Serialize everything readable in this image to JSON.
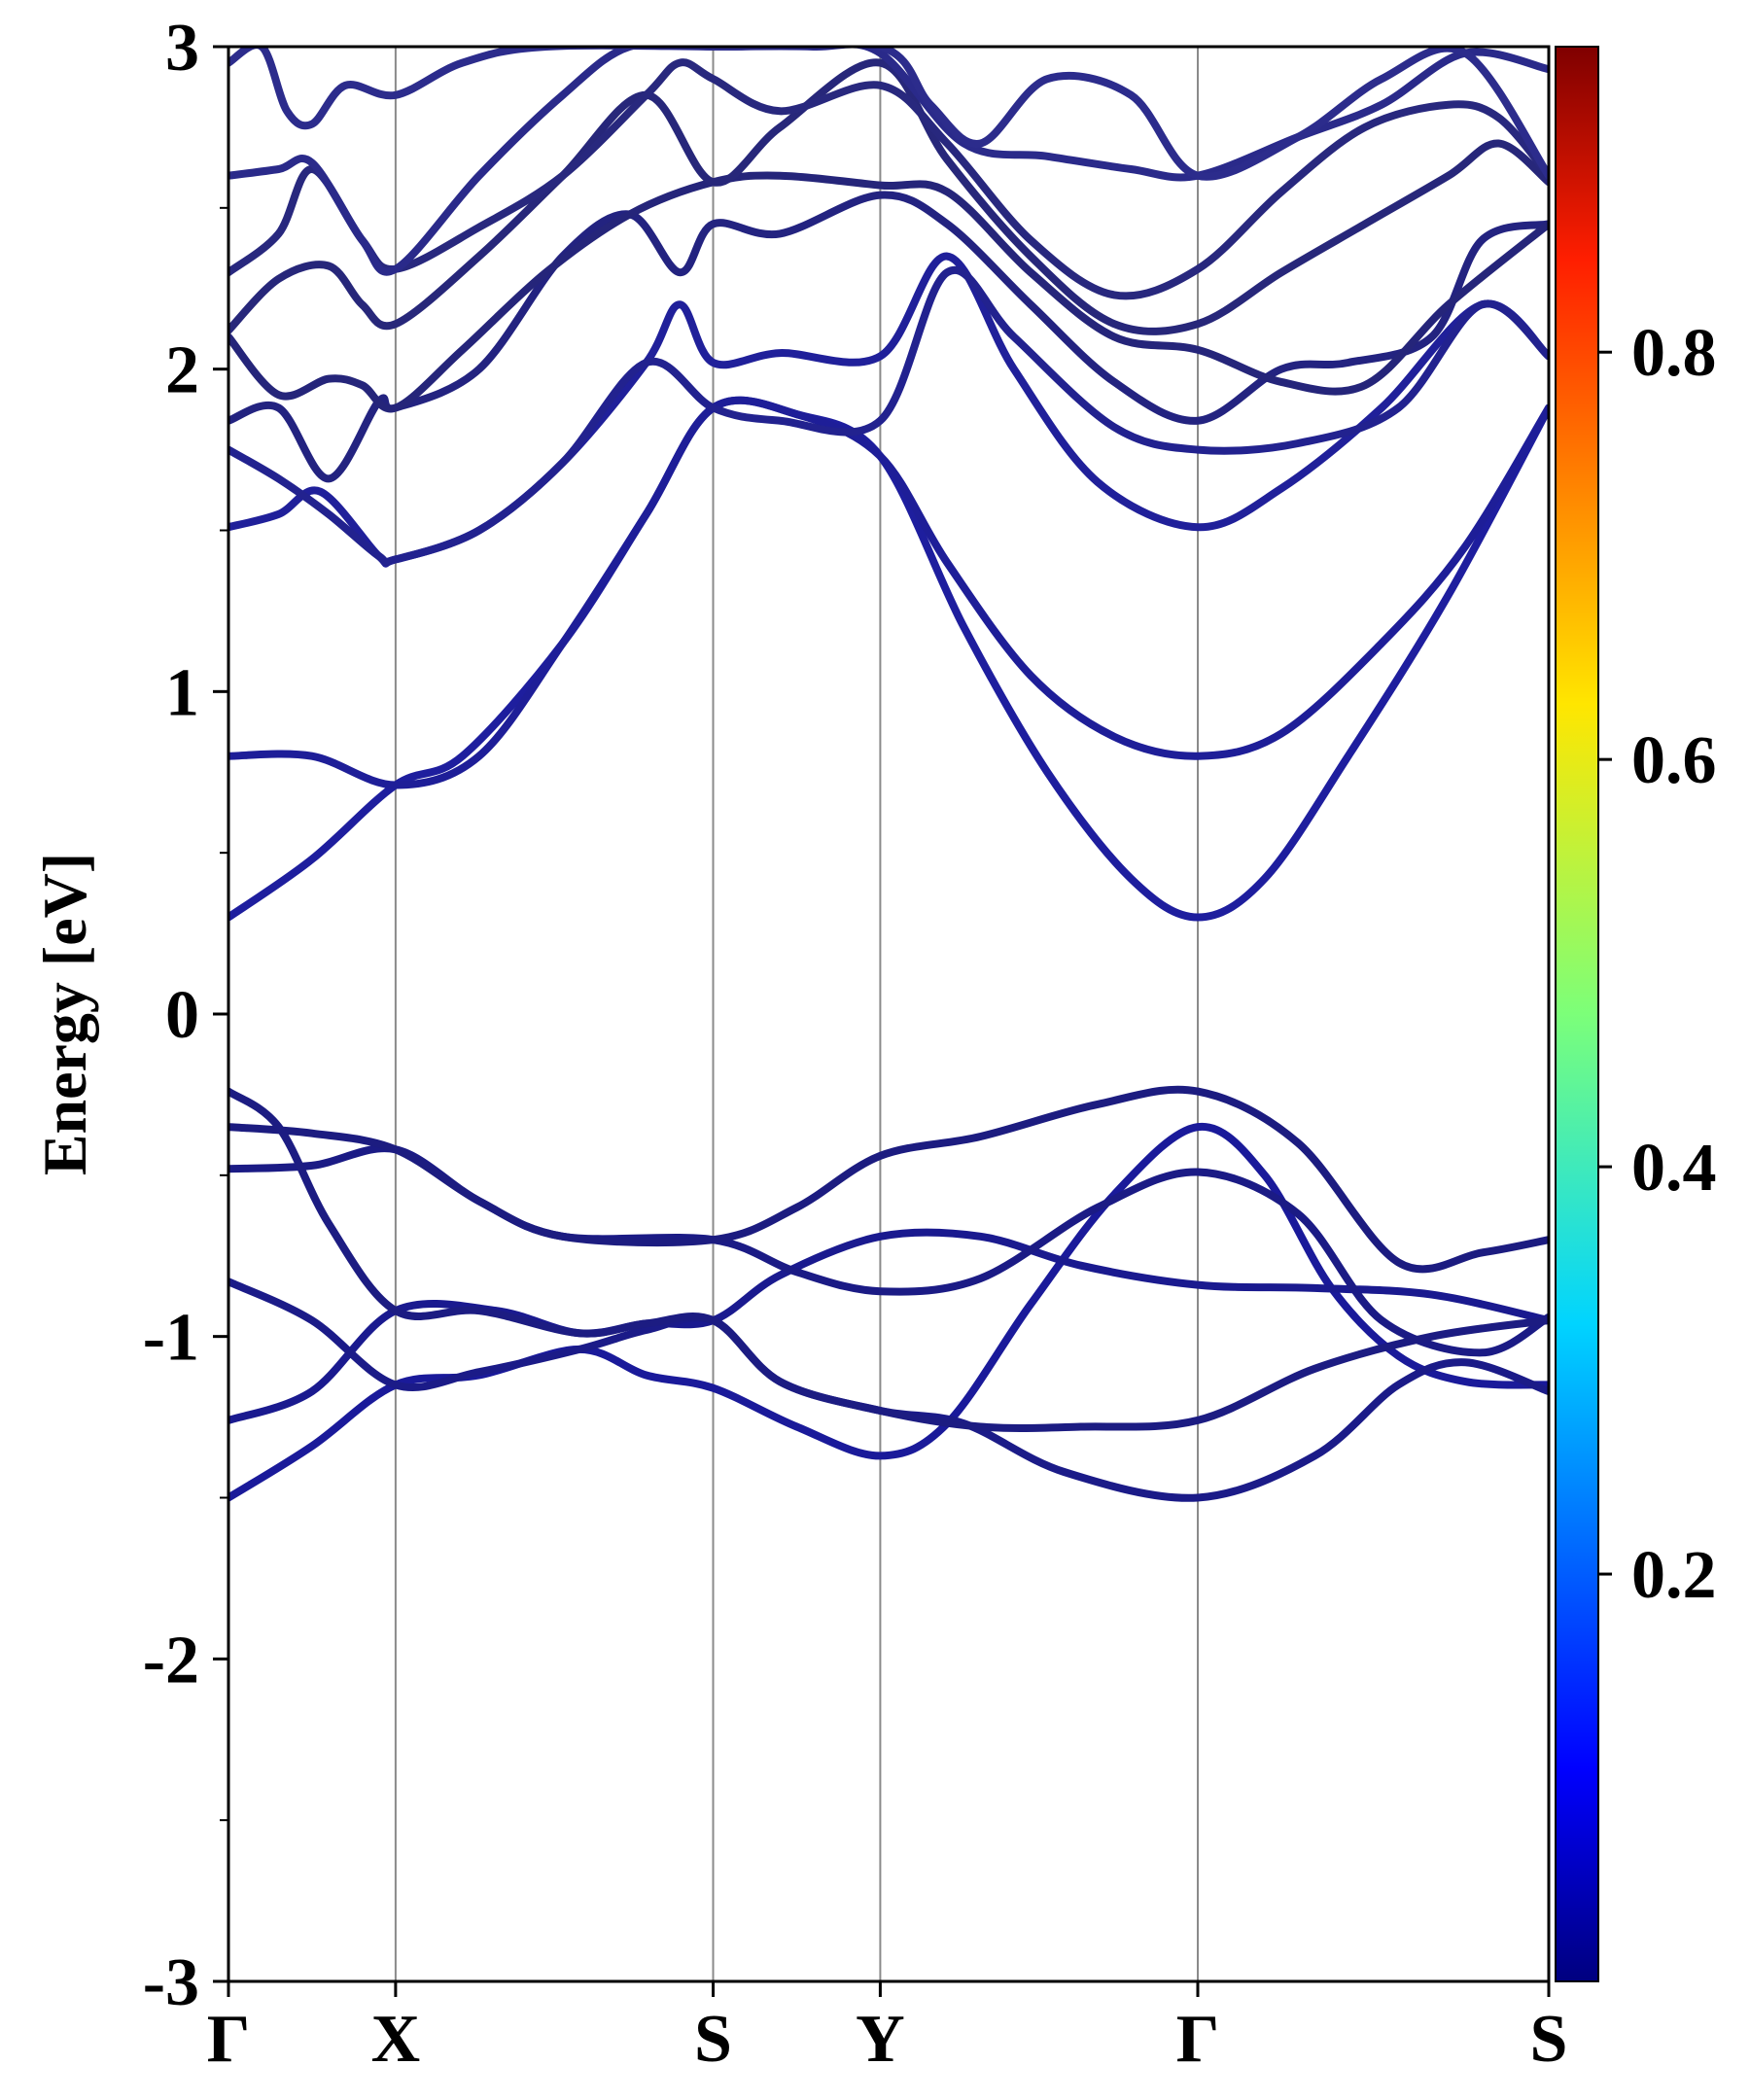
{
  "chart_data": {
    "type": "line",
    "title": "",
    "ylabel": "Energy [eV]",
    "xlabel": "",
    "ylim": [
      -3,
      3
    ],
    "xlim": [
      0,
      7.9
    ],
    "grid": false,
    "yticks": [
      {
        "value": -3,
        "label": "-3"
      },
      {
        "value": -2,
        "label": "-2"
      },
      {
        "value": -1,
        "label": "-1"
      },
      {
        "value": 0,
        "label": "0"
      },
      {
        "value": 1,
        "label": "1"
      },
      {
        "value": 2,
        "label": "2"
      },
      {
        "value": 3,
        "label": "3"
      }
    ],
    "high_symmetry_points": [
      {
        "label": "Γ",
        "x": 0.0
      },
      {
        "label": "X",
        "x": 1.0
      },
      {
        "label": "S",
        "x": 2.9
      },
      {
        "label": "Y",
        "x": 3.9
      },
      {
        "label": "Γ",
        "x": 5.8
      },
      {
        "label": "S",
        "x": 7.9
      }
    ],
    "colorbar": {
      "colormap": "jet",
      "range": [
        0,
        0.95
      ],
      "ticks": [
        {
          "value": 0.2,
          "label": "0.2"
        },
        {
          "value": 0.4,
          "label": "0.4"
        },
        {
          "value": 0.6,
          "label": "0.6"
        },
        {
          "value": 0.8,
          "label": "0.8"
        }
      ]
    },
    "series": [
      {
        "color": "#1a1a9a",
        "points": [
          [
            0.0,
            -1.5
          ],
          [
            0.5,
            -1.34
          ],
          [
            1.0,
            -1.15
          ],
          [
            1.5,
            -1.12
          ],
          [
            2.1,
            -1.04
          ],
          [
            2.5,
            -1.12
          ],
          [
            2.9,
            -1.16
          ],
          [
            3.4,
            -1.28
          ],
          [
            3.9,
            -1.37
          ],
          [
            4.3,
            -1.27
          ],
          [
            4.8,
            -0.9
          ],
          [
            5.3,
            -0.56
          ],
          [
            5.8,
            -0.35
          ],
          [
            6.2,
            -0.5
          ],
          [
            6.6,
            -0.85
          ],
          [
            7.0,
            -1.06
          ],
          [
            7.4,
            -1.14
          ],
          [
            7.9,
            -1.15
          ]
        ]
      },
      {
        "color": "#1a1a8f",
        "points": [
          [
            0.0,
            -1.26
          ],
          [
            0.5,
            -1.17
          ],
          [
            1.0,
            -0.92
          ],
          [
            1.6,
            -0.92
          ],
          [
            2.1,
            -0.99
          ],
          [
            2.5,
            -0.96
          ],
          [
            2.9,
            -0.95
          ],
          [
            3.3,
            -0.81
          ],
          [
            3.9,
            -0.69
          ],
          [
            4.5,
            -0.69
          ],
          [
            5.1,
            -0.78
          ],
          [
            5.8,
            -0.84
          ],
          [
            6.5,
            -0.85
          ],
          [
            7.2,
            -0.87
          ],
          [
            7.9,
            -0.95
          ]
        ]
      },
      {
        "color": "#1b1b88",
        "points": [
          [
            0.0,
            -0.83
          ],
          [
            0.5,
            -0.95
          ],
          [
            1.0,
            -1.15
          ],
          [
            1.5,
            -1.11
          ],
          [
            2.1,
            -1.04
          ],
          [
            2.5,
            -0.98
          ],
          [
            2.9,
            -0.95
          ],
          [
            3.3,
            -1.14
          ],
          [
            3.9,
            -1.23
          ],
          [
            4.4,
            -1.27
          ],
          [
            5.0,
            -1.42
          ],
          [
            5.8,
            -1.5
          ],
          [
            6.5,
            -1.37
          ],
          [
            7.0,
            -1.15
          ],
          [
            7.4,
            -1.08
          ],
          [
            7.9,
            -1.17
          ]
        ]
      },
      {
        "color": "#1b1b85",
        "points": [
          [
            0.0,
            -0.48
          ],
          [
            0.5,
            -0.47
          ],
          [
            1.0,
            -0.42
          ],
          [
            1.5,
            -0.58
          ],
          [
            2.0,
            -0.69
          ],
          [
            2.9,
            -0.7
          ],
          [
            3.4,
            -0.8
          ],
          [
            3.9,
            -0.86
          ],
          [
            4.5,
            -0.82
          ],
          [
            5.2,
            -0.6
          ],
          [
            5.8,
            -0.49
          ],
          [
            6.4,
            -0.62
          ],
          [
            6.9,
            -0.95
          ],
          [
            7.5,
            -1.05
          ],
          [
            7.9,
            -0.94
          ]
        ]
      },
      {
        "color": "#1c1c80",
        "points": [
          [
            0.0,
            -0.35
          ],
          [
            0.5,
            -0.37
          ],
          [
            1.0,
            -0.42
          ],
          [
            1.5,
            -0.58
          ],
          [
            2.0,
            -0.69
          ],
          [
            2.9,
            -0.7
          ],
          [
            3.4,
            -0.6
          ],
          [
            3.9,
            -0.44
          ],
          [
            4.5,
            -0.38
          ],
          [
            5.2,
            -0.28
          ],
          [
            5.8,
            -0.24
          ],
          [
            6.4,
            -0.4
          ],
          [
            7.0,
            -0.77
          ],
          [
            7.5,
            -0.74
          ],
          [
            7.9,
            -0.7
          ]
        ]
      },
      {
        "color": "#1c1c82",
        "points": [
          [
            0.0,
            -0.24
          ],
          [
            0.3,
            -0.35
          ],
          [
            0.6,
            -0.65
          ],
          [
            1.0,
            -0.92
          ],
          [
            1.5,
            -0.92
          ],
          [
            2.1,
            -0.99
          ],
          [
            2.5,
            -0.96
          ],
          [
            2.9,
            -0.95
          ],
          [
            3.3,
            -1.14
          ],
          [
            3.9,
            -1.23
          ],
          [
            4.5,
            -1.28
          ],
          [
            5.1,
            -1.28
          ],
          [
            5.8,
            -1.26
          ],
          [
            6.5,
            -1.1
          ],
          [
            7.2,
            -1.0
          ],
          [
            7.9,
            -0.95
          ]
        ]
      },
      {
        "color": "#1e1e9e",
        "points": [
          [
            0.0,
            0.3
          ],
          [
            0.5,
            0.48
          ],
          [
            1.0,
            0.71
          ],
          [
            1.4,
            0.8
          ],
          [
            2.0,
            1.15
          ],
          [
            2.5,
            1.55
          ],
          [
            2.9,
            1.88
          ],
          [
            3.4,
            1.86
          ],
          [
            3.9,
            1.73
          ],
          [
            4.4,
            1.2
          ],
          [
            4.9,
            0.75
          ],
          [
            5.4,
            0.42
          ],
          [
            5.8,
            0.3
          ],
          [
            6.2,
            0.42
          ],
          [
            6.7,
            0.8
          ],
          [
            7.3,
            1.3
          ],
          [
            7.9,
            1.88
          ]
        ]
      },
      {
        "color": "#1e1e98",
        "points": [
          [
            0.0,
            0.8
          ],
          [
            0.5,
            0.8
          ],
          [
            1.0,
            0.71
          ],
          [
            1.5,
            0.8
          ],
          [
            2.0,
            1.15
          ],
          [
            2.5,
            1.55
          ],
          [
            2.9,
            1.88
          ],
          [
            3.4,
            1.86
          ],
          [
            3.9,
            1.73
          ],
          [
            4.3,
            1.4
          ],
          [
            4.8,
            1.05
          ],
          [
            5.3,
            0.86
          ],
          [
            5.8,
            0.8
          ],
          [
            6.3,
            0.87
          ],
          [
            6.9,
            1.15
          ],
          [
            7.4,
            1.45
          ],
          [
            7.9,
            1.88
          ]
        ]
      },
      {
        "color": "#20209a",
        "points": [
          [
            0.0,
            1.51
          ],
          [
            0.3,
            1.55
          ],
          [
            0.55,
            1.62
          ],
          [
            0.9,
            1.42
          ],
          [
            1.0,
            1.41
          ],
          [
            1.5,
            1.5
          ],
          [
            2.0,
            1.71
          ],
          [
            2.5,
            2.02
          ],
          [
            2.7,
            2.2
          ],
          [
            2.9,
            2.02
          ],
          [
            3.3,
            2.05
          ],
          [
            3.9,
            2.04
          ],
          [
            4.3,
            2.35
          ],
          [
            4.7,
            2.0
          ],
          [
            5.2,
            1.65
          ],
          [
            5.8,
            1.51
          ],
          [
            6.3,
            1.63
          ],
          [
            6.9,
            1.88
          ],
          [
            7.5,
            2.2
          ],
          [
            7.9,
            2.04
          ]
        ]
      },
      {
        "color": "#22228f",
        "points": [
          [
            0.0,
            1.75
          ],
          [
            0.3,
            1.66
          ],
          [
            0.6,
            1.55
          ],
          [
            0.9,
            1.42
          ],
          [
            1.0,
            1.41
          ],
          [
            1.5,
            1.5
          ],
          [
            2.0,
            1.71
          ],
          [
            2.5,
            2.02
          ],
          [
            2.9,
            1.88
          ],
          [
            3.3,
            1.84
          ],
          [
            3.9,
            1.84
          ],
          [
            4.3,
            2.3
          ],
          [
            4.7,
            2.1
          ],
          [
            5.3,
            1.82
          ],
          [
            5.8,
            1.75
          ],
          [
            6.4,
            1.77
          ],
          [
            7.0,
            1.88
          ],
          [
            7.5,
            2.2
          ],
          [
            7.9,
            2.04
          ]
        ]
      },
      {
        "color": "#232380",
        "points": [
          [
            0.0,
            1.84
          ],
          [
            0.3,
            1.88
          ],
          [
            0.6,
            1.66
          ],
          [
            0.9,
            1.9
          ],
          [
            1.0,
            1.88
          ],
          [
            1.5,
            2.0
          ],
          [
            2.0,
            2.35
          ],
          [
            2.4,
            2.48
          ],
          [
            2.7,
            2.3
          ],
          [
            2.9,
            2.45
          ],
          [
            3.3,
            2.42
          ],
          [
            3.9,
            2.54
          ],
          [
            4.3,
            2.45
          ],
          [
            4.8,
            2.2
          ],
          [
            5.3,
            1.96
          ],
          [
            5.8,
            1.84
          ],
          [
            6.3,
            2.0
          ],
          [
            6.7,
            2.02
          ],
          [
            7.2,
            2.1
          ],
          [
            7.5,
            2.4
          ],
          [
            7.9,
            2.45
          ]
        ]
      },
      {
        "color": "#25257a",
        "points": [
          [
            0.0,
            2.1
          ],
          [
            0.3,
            1.92
          ],
          [
            0.6,
            1.97
          ],
          [
            0.8,
            1.95
          ],
          [
            1.0,
            1.88
          ],
          [
            1.4,
            2.06
          ],
          [
            1.9,
            2.3
          ],
          [
            2.4,
            2.48
          ],
          [
            2.9,
            2.58
          ],
          [
            3.3,
            2.6
          ],
          [
            3.9,
            2.57
          ],
          [
            4.3,
            2.55
          ],
          [
            4.8,
            2.3
          ],
          [
            5.3,
            2.1
          ],
          [
            5.8,
            2.06
          ],
          [
            6.3,
            1.96
          ],
          [
            6.8,
            1.95
          ],
          [
            7.3,
            2.2
          ],
          [
            7.9,
            2.45
          ]
        ]
      },
      {
        "color": "#27277a",
        "points": [
          [
            0.0,
            2.12
          ],
          [
            0.3,
            2.28
          ],
          [
            0.6,
            2.32
          ],
          [
            0.8,
            2.2
          ],
          [
            1.0,
            2.14
          ],
          [
            1.5,
            2.35
          ],
          [
            2.0,
            2.6
          ],
          [
            2.5,
            2.85
          ],
          [
            2.9,
            2.58
          ],
          [
            3.3,
            2.75
          ],
          [
            3.9,
            2.95
          ],
          [
            4.3,
            2.65
          ],
          [
            4.8,
            2.35
          ],
          [
            5.3,
            2.14
          ],
          [
            5.8,
            2.14
          ],
          [
            6.3,
            2.3
          ],
          [
            6.8,
            2.45
          ],
          [
            7.3,
            2.6
          ],
          [
            7.6,
            2.7
          ],
          [
            7.9,
            2.58
          ]
        ]
      },
      {
        "color": "#28287e",
        "points": [
          [
            0.0,
            2.3
          ],
          [
            0.3,
            2.42
          ],
          [
            0.5,
            2.62
          ],
          [
            0.8,
            2.4
          ],
          [
            1.0,
            2.31
          ],
          [
            1.5,
            2.44
          ],
          [
            2.0,
            2.6
          ],
          [
            2.5,
            2.85
          ],
          [
            2.7,
            2.95
          ],
          [
            2.9,
            2.9
          ],
          [
            3.3,
            2.8
          ],
          [
            3.9,
            2.88
          ],
          [
            4.3,
            2.7
          ],
          [
            4.8,
            2.4
          ],
          [
            5.3,
            2.23
          ],
          [
            5.8,
            2.31
          ],
          [
            6.3,
            2.55
          ],
          [
            6.8,
            2.75
          ],
          [
            7.3,
            2.82
          ],
          [
            7.6,
            2.78
          ],
          [
            7.9,
            2.6
          ]
        ]
      },
      {
        "color": "#2a2a8a",
        "points": [
          [
            0.0,
            2.6
          ],
          [
            0.3,
            2.62
          ],
          [
            0.5,
            2.64
          ],
          [
            0.8,
            2.4
          ],
          [
            1.0,
            2.31
          ],
          [
            1.5,
            2.6
          ],
          [
            2.0,
            2.85
          ],
          [
            2.4,
            3.0
          ],
          [
            2.9,
            3.0
          ],
          [
            3.5,
            3.0
          ],
          [
            3.9,
            2.98
          ],
          [
            4.4,
            2.7
          ],
          [
            4.9,
            2.66
          ],
          [
            5.4,
            2.62
          ],
          [
            5.8,
            2.6
          ],
          [
            6.4,
            2.72
          ],
          [
            6.9,
            2.82
          ],
          [
            7.4,
            2.98
          ],
          [
            7.9,
            2.93
          ]
        ]
      },
      {
        "color": "#2c2c8c",
        "points": [
          [
            0.0,
            2.95
          ],
          [
            0.2,
            3.0
          ],
          [
            0.35,
            2.8
          ],
          [
            0.5,
            2.76
          ],
          [
            0.7,
            2.88
          ],
          [
            1.0,
            2.85
          ],
          [
            1.4,
            2.95
          ],
          [
            1.9,
            3.0
          ],
          [
            3.0,
            3.0
          ],
          [
            3.9,
            3.0
          ],
          [
            4.2,
            2.82
          ],
          [
            4.5,
            2.7
          ],
          [
            4.9,
            2.9
          ],
          [
            5.4,
            2.85
          ],
          [
            5.8,
            2.6
          ],
          [
            6.4,
            2.72
          ],
          [
            6.9,
            2.9
          ],
          [
            7.4,
            2.98
          ],
          [
            7.9,
            2.6
          ]
        ]
      }
    ]
  }
}
